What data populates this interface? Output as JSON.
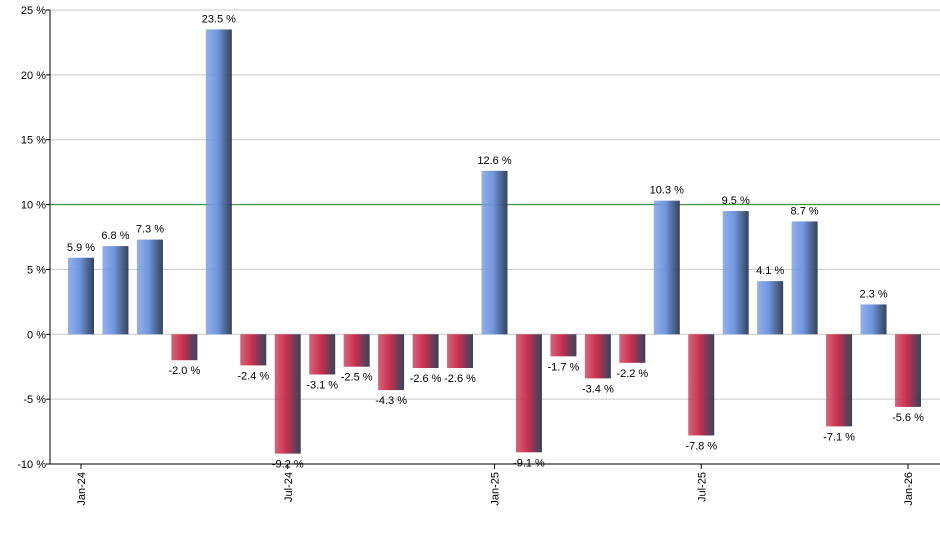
{
  "chart_data": {
    "type": "bar",
    "categories": [
      "Jan-24",
      null,
      null,
      null,
      null,
      null,
      "Jul-24",
      null,
      null,
      null,
      null,
      null,
      "Jan-25",
      null,
      null,
      null,
      null,
      null,
      "Jul-25",
      null,
      null,
      null,
      null,
      null,
      "Jan-26"
    ],
    "values": [
      5.9,
      6.8,
      7.3,
      -2.0,
      23.5,
      -2.4,
      -9.2,
      -3.1,
      -2.5,
      -4.3,
      -2.6,
      -2.6,
      12.6,
      -9.1,
      -1.7,
      -3.4,
      -2.2,
      10.3,
      -7.8,
      9.5,
      4.1,
      8.7,
      -7.1,
      2.3,
      -5.6
    ],
    "value_labels": [
      "5.9 %",
      "6.8 %",
      "7.3 %",
      "-2.0 %",
      "23.5 %",
      "-2.4 %",
      "-9.2 %",
      "-3.1 %",
      "-2.5 %",
      "-4.3 %",
      "-2.6 %",
      "-2.6 %",
      "12.6 %",
      "-9.1 %",
      "-1.7 %",
      "-3.4 %",
      "-2.2 %",
      "10.3 %",
      "-7.8 %",
      "9.5 %",
      "4.1 %",
      "8.7 %",
      "-7.1 %",
      "2.3 %",
      "-5.6 %"
    ],
    "positive_color": "#7096e0",
    "negative_color": "#c9304f",
    "reference_line": 10,
    "reference_color": "#2e8b2e",
    "ylim": [
      -10,
      25
    ],
    "yticks": [
      {
        "value": -10,
        "label": "-10 %"
      },
      {
        "value": -5,
        "label": "-5 %"
      },
      {
        "value": 0,
        "label": "0 %"
      },
      {
        "value": 5,
        "label": "5 %"
      },
      {
        "value": 10,
        "label": "10 %"
      },
      {
        "value": 15,
        "label": "15 %"
      },
      {
        "value": 20,
        "label": "20 %"
      },
      {
        "value": 25,
        "label": "25 %"
      }
    ],
    "grid": true
  }
}
